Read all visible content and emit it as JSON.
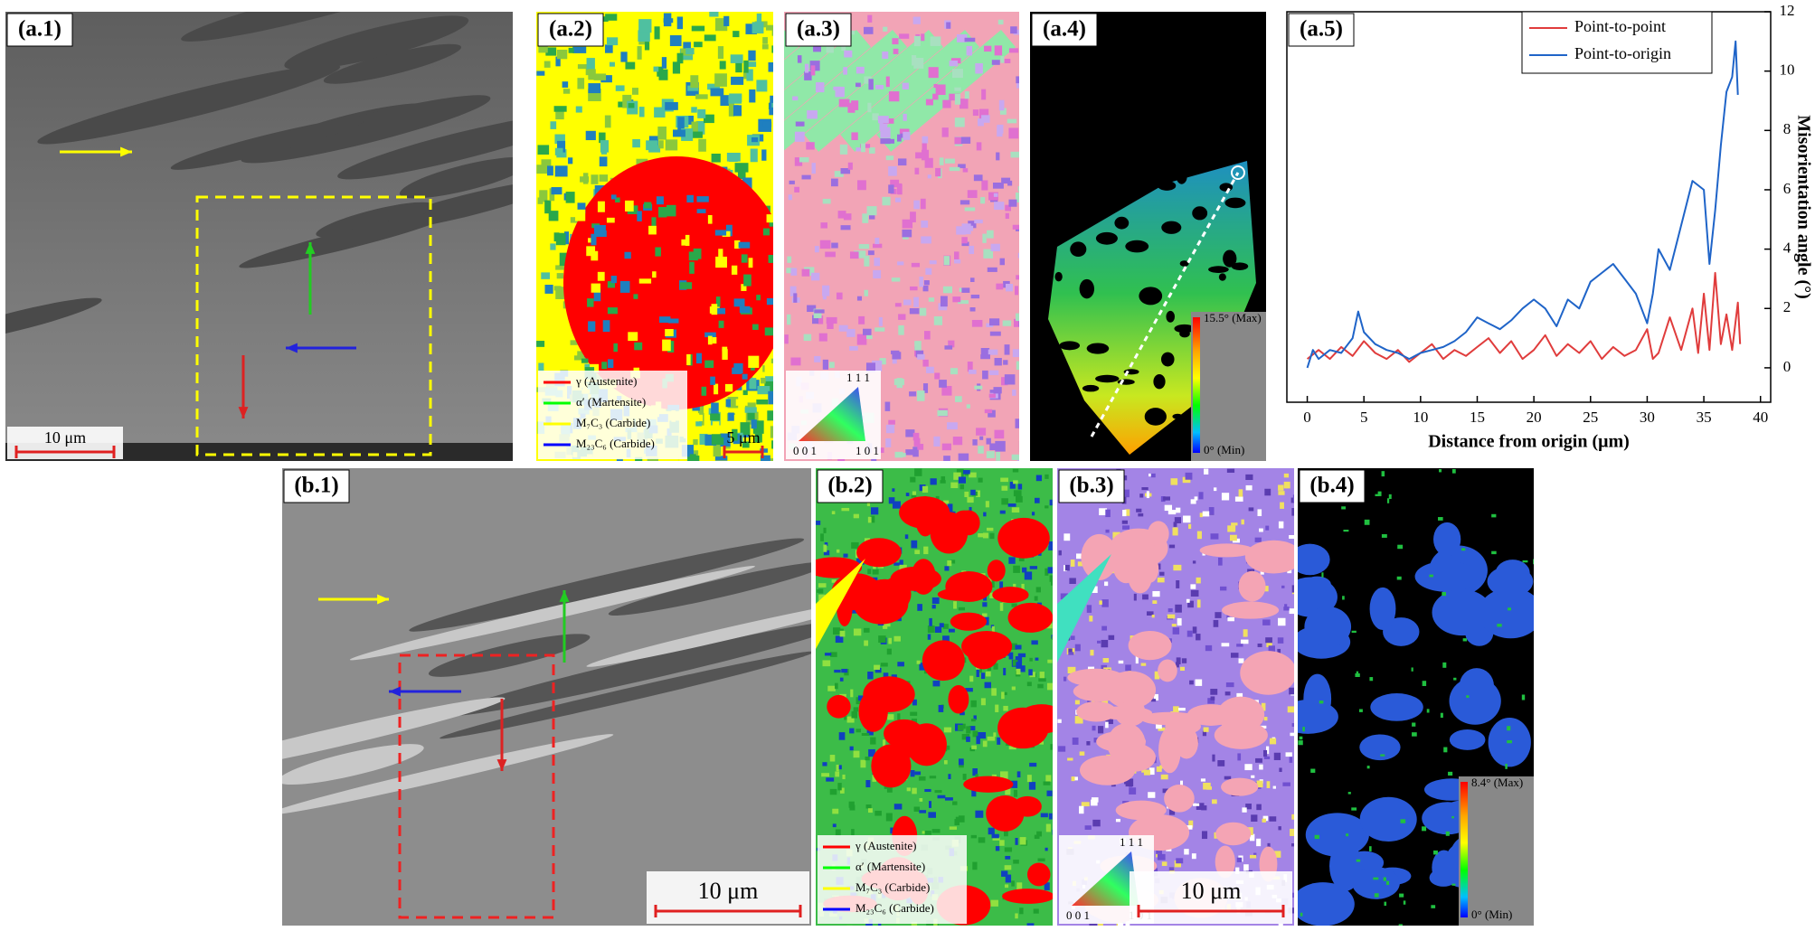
{
  "panels": [
    {
      "label": "(a.1)",
      "scale_bar": "10 μm"
    },
    {
      "label": "(a.2)",
      "legend": [
        {
          "text": "γ (Austenite)",
          "color": "#ff0000"
        },
        {
          "text": "α′ (Martensite)",
          "color": "#00ff00"
        },
        {
          "text": "M₇C₃ (Carbide)",
          "color": "#ffff00"
        },
        {
          "text": "M₂₃C₆ (Carbide)",
          "color": "#0000ff"
        }
      ],
      "scale_bar": "5 μm"
    },
    {
      "label": "(a.3)",
      "ipf": [
        "1 1 1",
        "0 0 1",
        "1 0 1"
      ]
    },
    {
      "label": "(a.4)",
      "colorbar": [
        "15.5° (Max)",
        "0° (Min)"
      ]
    },
    {
      "label": "(b.1)",
      "scale_bar": "10 μm"
    },
    {
      "label": "(b.2)",
      "legend": [
        {
          "text": "γ (Austenite)",
          "color": "#ff0000"
        },
        {
          "text": "α′ (Martensite)",
          "color": "#00ff00"
        },
        {
          "text": "M₇C₃ (Carbide)",
          "color": "#ffff00"
        },
        {
          "text": "M₂₃C₆ (Carbide)",
          "color": "#0000ff"
        }
      ]
    },
    {
      "label": "(b.3)",
      "ipf": [
        "1 1 1",
        "0 0 1",
        "1 0 1"
      ],
      "scale_bar": "10 μm"
    },
    {
      "label": "(b.4)",
      "colorbar": [
        "8.4° (Max)",
        "0° (Min)"
      ]
    }
  ],
  "chart_data": {
    "type": "line",
    "panel_label": "(a.5)",
    "x_label": "Distance from origin (μm)",
    "y_label": "Misorientation angle (°)",
    "xlim": [
      -1.8,
      40.9
    ],
    "ylim": [
      -1.16,
      12
    ],
    "xticks": [
      0,
      5,
      10,
      15,
      20,
      25,
      30,
      35,
      40
    ],
    "yticks": [
      0,
      2,
      4,
      6,
      8,
      10,
      12
    ],
    "legend": "upper right",
    "series": [
      {
        "name": "Point-to-point",
        "color": "#e03c3c",
        "x": [
          0,
          1,
          2,
          3,
          4,
          5,
          6,
          7,
          8,
          9,
          10,
          11,
          12,
          13,
          14,
          15,
          16,
          17,
          18,
          19,
          20,
          21,
          22,
          23,
          24,
          25,
          26,
          27,
          28,
          29,
          30,
          30.5,
          31,
          32,
          33,
          34,
          34.5,
          35,
          35.5,
          36,
          36.5,
          37,
          37.5,
          38,
          38.2
        ],
        "values": [
          0.3,
          0.6,
          0.3,
          0.7,
          0.4,
          0.9,
          0.5,
          0.3,
          0.6,
          0.2,
          0.5,
          0.8,
          0.3,
          0.6,
          0.4,
          0.7,
          1.0,
          0.5,
          0.9,
          0.3,
          0.6,
          1.1,
          0.4,
          0.8,
          0.5,
          0.9,
          0.3,
          0.7,
          0.4,
          0.6,
          1.3,
          0.3,
          0.5,
          1.7,
          0.6,
          2.0,
          0.5,
          2.5,
          0.6,
          3.2,
          0.8,
          1.8,
          0.6,
          2.2,
          0.8
        ]
      },
      {
        "name": "Point-to-origin",
        "color": "#1f64c8",
        "x": [
          0,
          0.5,
          1,
          2,
          3,
          4,
          4.5,
          5,
          6,
          7,
          8,
          9,
          10,
          11,
          12,
          13,
          14,
          15,
          16,
          17,
          18,
          19,
          20,
          21,
          22,
          23,
          24,
          25,
          26,
          27,
          28,
          29,
          30,
          30.5,
          31,
          32,
          33,
          34,
          35,
          35.5,
          36,
          36.5,
          37,
          37.5,
          37.8,
          38
        ],
        "values": [
          0,
          0.6,
          0.3,
          0.6,
          0.5,
          1.0,
          1.9,
          1.2,
          0.8,
          0.6,
          0.5,
          0.3,
          0.5,
          0.6,
          0.7,
          0.9,
          1.2,
          1.7,
          1.5,
          1.3,
          1.6,
          2.0,
          2.3,
          2.0,
          1.4,
          2.3,
          2.0,
          2.9,
          3.2,
          3.5,
          3.0,
          2.5,
          1.5,
          2.5,
          4.0,
          3.3,
          4.8,
          6.3,
          6.0,
          3.5,
          5.3,
          7.5,
          9.3,
          9.8,
          11.0,
          9.2
        ]
      }
    ]
  }
}
